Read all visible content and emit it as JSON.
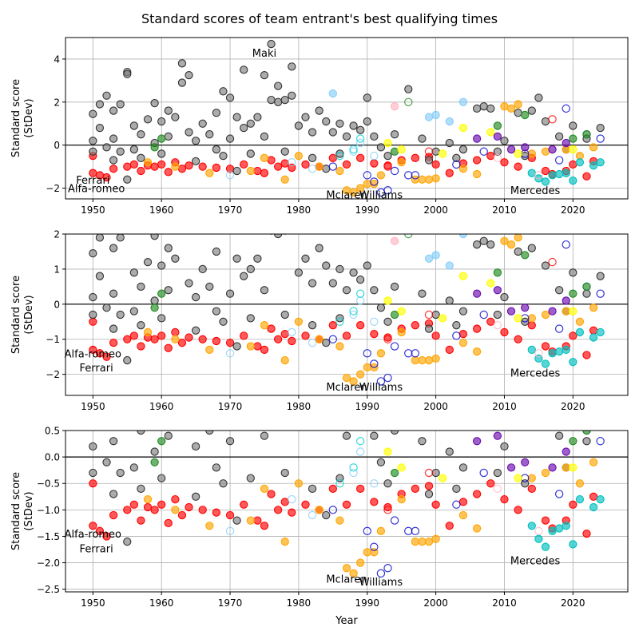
{
  "figure_title": "Standard scores of team entrant's best qualifying times",
  "colors": {
    "grey": "#808080",
    "red": "#ff0000",
    "orange": "#ffa500",
    "blue": "#0000cd",
    "lightblue": "#87cefa",
    "cyan": "#00ced1",
    "green": "#228b22",
    "yellow": "#ffff00",
    "purple": "#6a0dad",
    "pink": "#ffb6c1",
    "teal": "#00bfbf"
  },
  "chart_data": [
    {
      "type": "scatter",
      "ylabel": "Standard score\n(StDev)",
      "xlabel": "",
      "xlim": [
        1946,
        2028
      ],
      "ylim": [
        -2.5,
        5
      ],
      "xticks": [
        1950,
        1960,
        1970,
        1980,
        1990,
        2000,
        2010,
        2020
      ],
      "yticks": [
        -2,
        0,
        2,
        4
      ],
      "grid": true,
      "annotations": [
        {
          "text": "Maki",
          "x": 1975,
          "y": 4.3
        },
        {
          "text": "Ferrari",
          "x": 1950,
          "y": -1.6
        },
        {
          "text": "Alfa-romeo",
          "x": 1950.5,
          "y": -2.0
        },
        {
          "text": "Mclaren",
          "x": 1987,
          "y": -2.3
        },
        {
          "text": "Williams",
          "x": 1992,
          "y": -2.3
        },
        {
          "text": "Mercedes",
          "x": 2014.5,
          "y": -2.1
        }
      ]
    },
    {
      "type": "scatter",
      "ylabel": "Standard score\n(StDev)",
      "xlabel": "",
      "xlim": [
        1946,
        2028
      ],
      "ylim": [
        -2.6,
        2
      ],
      "xticks": [
        1950,
        1960,
        1970,
        1980,
        1990,
        2000,
        2010,
        2020
      ],
      "yticks": [
        -2,
        -1,
        0,
        1,
        2
      ],
      "grid": true,
      "annotations": [
        {
          "text": "Alfa-romeo",
          "x": 1950,
          "y": -1.4
        },
        {
          "text": "Ferrari",
          "x": 1950.5,
          "y": -1.8
        },
        {
          "text": "Mclaren",
          "x": 1987,
          "y": -2.35
        },
        {
          "text": "Williams",
          "x": 1992,
          "y": -2.35
        },
        {
          "text": "Mercedes",
          "x": 2014.5,
          "y": -1.95
        }
      ]
    },
    {
      "type": "scatter",
      "ylabel": "Standard score\n(StDev)",
      "xlabel": "Year",
      "xlim": [
        1946,
        2028
      ],
      "ylim": [
        -2.55,
        0.5
      ],
      "xticks": [
        1950,
        1960,
        1970,
        1980,
        1990,
        2000,
        2010,
        2020
      ],
      "yticks": [
        -2.5,
        -2.0,
        -1.5,
        -1.0,
        -0.5,
        0.0,
        0.5
      ],
      "grid": true,
      "annotations": [
        {
          "text": "Alfa-romeo",
          "x": 1950,
          "y": -1.45
        },
        {
          "text": "Ferrari",
          "x": 1950.5,
          "y": -1.73
        },
        {
          "text": "Mclaren",
          "x": 1987,
          "y": -2.3
        },
        {
          "text": "Williams",
          "x": 1992,
          "y": -2.35
        },
        {
          "text": "Mercedes",
          "x": 2014.5,
          "y": -1.95
        }
      ]
    }
  ],
  "points": [
    {
      "x": 1950,
      "y": -0.5,
      "c": "red"
    },
    {
      "x": 1950,
      "y": -1.3,
      "c": "red"
    },
    {
      "x": 1951,
      "y": -1.4,
      "c": "red"
    },
    {
      "x": 1952,
      "y": -1.5,
      "c": "red"
    },
    {
      "x": 1953,
      "y": -1.1,
      "c": "red"
    },
    {
      "x": 1955,
      "y": -1.0,
      "c": "red"
    },
    {
      "x": 1956,
      "y": -0.9,
      "c": "red"
    },
    {
      "x": 1957,
      "y": -1.2,
      "c": "red"
    },
    {
      "x": 1958,
      "y": -0.95,
      "c": "red"
    },
    {
      "x": 1959,
      "y": -1.0,
      "c": "red"
    },
    {
      "x": 1960,
      "y": -0.9,
      "c": "red"
    },
    {
      "x": 1961,
      "y": -1.25,
      "c": "red"
    },
    {
      "x": 1962,
      "y": -0.8,
      "c": "red"
    },
    {
      "x": 1963,
      "y": -1.1,
      "c": "red"
    },
    {
      "x": 1964,
      "y": -0.95,
      "c": "red"
    },
    {
      "x": 1966,
      "y": -1.0,
      "c": "red"
    },
    {
      "x": 1968,
      "y": -1.05,
      "c": "red"
    },
    {
      "x": 1970,
      "y": -1.1,
      "c": "red"
    },
    {
      "x": 1972,
      "y": -0.9,
      "c": "red"
    },
    {
      "x": 1974,
      "y": -1.2,
      "c": "red"
    },
    {
      "x": 1975,
      "y": -1.3,
      "c": "red"
    },
    {
      "x": 1976,
      "y": -0.7,
      "c": "red"
    },
    {
      "x": 1977,
      "y": -1.0,
      "c": "red"
    },
    {
      "x": 1978,
      "y": -0.85,
      "c": "red"
    },
    {
      "x": 1979,
      "y": -1.05,
      "c": "red"
    },
    {
      "x": 1981,
      "y": -0.9,
      "c": "red"
    },
    {
      "x": 1983,
      "y": -1.0,
      "c": "red"
    },
    {
      "x": 1985,
      "y": -0.6,
      "c": "red"
    },
    {
      "x": 1987,
      "y": -0.9,
      "c": "red"
    },
    {
      "x": 1989,
      "y": -0.6,
      "c": "red"
    },
    {
      "x": 1991,
      "y": -0.85,
      "c": "red"
    },
    {
      "x": 1993,
      "y": -0.95,
      "c": "red"
    },
    {
      "x": 1995,
      "y": -0.7,
      "c": "red"
    },
    {
      "x": 1997,
      "y": -0.6,
      "c": "red"
    },
    {
      "x": 1999,
      "y": -0.55,
      "c": "red"
    },
    {
      "x": 2000,
      "y": -0.9,
      "c": "red"
    },
    {
      "x": 2002,
      "y": -1.3,
      "c": "red"
    },
    {
      "x": 2004,
      "y": -0.85,
      "c": "red"
    },
    {
      "x": 2006,
      "y": -0.7,
      "c": "red"
    },
    {
      "x": 2008,
      "y": -0.5,
      "c": "red"
    },
    {
      "x": 2010,
      "y": -0.8,
      "c": "red"
    },
    {
      "x": 2012,
      "y": -1.0,
      "c": "red"
    },
    {
      "x": 2014,
      "y": -0.6,
      "c": "red"
    },
    {
      "x": 2016,
      "y": -1.2,
      "c": "red"
    },
    {
      "x": 2017,
      "y": -1.35,
      "c": "red"
    },
    {
      "x": 2019,
      "y": -1.2,
      "c": "red"
    },
    {
      "x": 2020,
      "y": -0.9,
      "c": "red"
    },
    {
      "x": 2022,
      "y": -1.45,
      "c": "red"
    },
    {
      "x": 2023,
      "y": -0.75,
      "c": "red"
    },
    {
      "x": 1950,
      "y": 0.2,
      "c": "grey"
    },
    {
      "x": 1950,
      "y": 1.45,
      "c": "grey"
    },
    {
      "x": 1951,
      "y": 0.8,
      "c": "grey"
    },
    {
      "x": 1951,
      "y": 1.9,
      "c": "grey"
    },
    {
      "x": 1952,
      "y": 2.3,
      "c": "grey"
    },
    {
      "x": 1952,
      "y": -0.1,
      "c": "grey"
    },
    {
      "x": 1953,
      "y": 1.6,
      "c": "grey"
    },
    {
      "x": 1953,
      "y": 0.3,
      "c": "grey"
    },
    {
      "x": 1954,
      "y": 1.9,
      "c": "grey"
    },
    {
      "x": 1954,
      "y": -0.3,
      "c": "grey"
    },
    {
      "x": 1955,
      "y": 3.4,
      "c": "grey"
    },
    {
      "x": 1955,
      "y": 3.3,
      "c": "grey"
    },
    {
      "x": 1956,
      "y": 0.9,
      "c": "grey"
    },
    {
      "x": 1956,
      "y": -0.2,
      "c": "grey"
    },
    {
      "x": 1957,
      "y": 0.5,
      "c": "grey"
    },
    {
      "x": 1958,
      "y": 1.2,
      "c": "grey"
    },
    {
      "x": 1959,
      "y": 1.95,
      "c": "grey"
    },
    {
      "x": 1959,
      "y": 0.1,
      "c": "grey"
    },
    {
      "x": 1960,
      "y": 1.1,
      "c": "grey"
    },
    {
      "x": 1961,
      "y": 1.6,
      "c": "grey"
    },
    {
      "x": 1961,
      "y": 0.4,
      "c": "grey"
    },
    {
      "x": 1962,
      "y": 1.3,
      "c": "grey"
    },
    {
      "x": 1963,
      "y": 3.8,
      "c": "grey"
    },
    {
      "x": 1963,
      "y": 2.9,
      "c": "grey"
    },
    {
      "x": 1964,
      "y": 3.25,
      "c": "grey"
    },
    {
      "x": 1964,
      "y": 0.6,
      "c": "grey"
    },
    {
      "x": 1965,
      "y": 0.2,
      "c": "grey"
    },
    {
      "x": 1966,
      "y": 1.0,
      "c": "grey"
    },
    {
      "x": 1967,
      "y": 0.5,
      "c": "grey"
    },
    {
      "x": 1968,
      "y": 1.5,
      "c": "grey"
    },
    {
      "x": 1968,
      "y": -0.2,
      "c": "grey"
    },
    {
      "x": 1969,
      "y": 2.5,
      "c": "grey"
    },
    {
      "x": 1970,
      "y": 2.2,
      "c": "grey"
    },
    {
      "x": 1970,
      "y": 0.3,
      "c": "grey"
    },
    {
      "x": 1971,
      "y": 1.3,
      "c": "grey"
    },
    {
      "x": 1972,
      "y": 3.5,
      "c": "grey"
    },
    {
      "x": 1972,
      "y": 0.8,
      "c": "grey"
    },
    {
      "x": 1973,
      "y": 1.0,
      "c": "grey"
    },
    {
      "x": 1974,
      "y": 1.3,
      "c": "grey"
    },
    {
      "x": 1975,
      "y": 3.25,
      "c": "grey"
    },
    {
      "x": 1975,
      "y": 0.4,
      "c": "grey"
    },
    {
      "x": 1976,
      "y": 4.7,
      "c": "grey"
    },
    {
      "x": 1976,
      "y": 2.1,
      "c": "grey"
    },
    {
      "x": 1977,
      "y": 2.75,
      "c": "grey"
    },
    {
      "x": 1977,
      "y": 2.0,
      "c": "grey"
    },
    {
      "x": 1978,
      "y": 2.1,
      "c": "grey"
    },
    {
      "x": 1979,
      "y": 3.65,
      "c": "grey"
    },
    {
      "x": 1979,
      "y": 2.3,
      "c": "grey"
    },
    {
      "x": 1980,
      "y": 0.9,
      "c": "grey"
    },
    {
      "x": 1981,
      "y": 1.3,
      "c": "grey"
    },
    {
      "x": 1982,
      "y": 0.6,
      "c": "grey"
    },
    {
      "x": 1983,
      "y": 1.6,
      "c": "grey"
    },
    {
      "x": 1984,
      "y": 1.1,
      "c": "grey"
    },
    {
      "x": 1985,
      "y": 0.6,
      "c": "grey"
    },
    {
      "x": 1986,
      "y": 1.0,
      "c": "grey"
    },
    {
      "x": 1987,
      "y": 0.4,
      "c": "grey"
    },
    {
      "x": 1988,
      "y": 0.9,
      "c": "grey"
    },
    {
      "x": 1989,
      "y": 0.7,
      "c": "grey"
    },
    {
      "x": 1990,
      "y": 2.2,
      "c": "grey"
    },
    {
      "x": 1990,
      "y": 1.1,
      "c": "grey"
    },
    {
      "x": 1991,
      "y": 0.4,
      "c": "grey"
    },
    {
      "x": 1992,
      "y": -0.1,
      "c": "grey"
    },
    {
      "x": 1994,
      "y": 0.5,
      "c": "grey"
    },
    {
      "x": 1996,
      "y": 2.6,
      "c": "grey"
    },
    {
      "x": 1998,
      "y": 0.3,
      "c": "grey"
    },
    {
      "x": 2000,
      "y": -0.3,
      "c": "grey"
    },
    {
      "x": 2002,
      "y": 0.1,
      "c": "grey"
    },
    {
      "x": 2004,
      "y": -0.2,
      "c": "grey"
    },
    {
      "x": 2006,
      "y": 1.7,
      "c": "grey"
    },
    {
      "x": 2007,
      "y": 1.8,
      "c": "grey"
    },
    {
      "x": 2008,
      "y": 1.7,
      "c": "grey"
    },
    {
      "x": 2010,
      "y": 0.2,
      "c": "grey"
    },
    {
      "x": 2012,
      "y": 1.5,
      "c": "grey"
    },
    {
      "x": 2014,
      "y": 1.6,
      "c": "grey"
    },
    {
      "x": 2015,
      "y": 2.2,
      "c": "grey"
    },
    {
      "x": 2016,
      "y": 1.1,
      "c": "grey"
    },
    {
      "x": 2018,
      "y": 0.4,
      "c": "grey"
    },
    {
      "x": 2020,
      "y": 0.9,
      "c": "grey"
    },
    {
      "x": 2022,
      "y": 0.3,
      "c": "grey"
    },
    {
      "x": 2024,
      "y": 0.8,
      "c": "grey"
    },
    {
      "x": 1950,
      "y": -0.3,
      "c": "grey"
    },
    {
      "x": 1953,
      "y": -0.7,
      "c": "grey"
    },
    {
      "x": 1957,
      "y": -0.6,
      "c": "grey"
    },
    {
      "x": 1960,
      "y": -0.4,
      "c": "grey"
    },
    {
      "x": 1965,
      "y": -0.75,
      "c": "grey"
    },
    {
      "x": 1969,
      "y": -0.5,
      "c": "grey"
    },
    {
      "x": 1973,
      "y": -0.4,
      "c": "grey"
    },
    {
      "x": 1978,
      "y": -0.3,
      "c": "grey"
    },
    {
      "x": 1982,
      "y": -0.6,
      "c": "grey"
    },
    {
      "x": 1986,
      "y": -0.4,
      "c": "grey"
    },
    {
      "x": 1993,
      "y": -0.5,
      "c": "grey"
    },
    {
      "x": 1999,
      "y": -0.7,
      "c": "grey"
    },
    {
      "x": 2003,
      "y": -0.6,
      "c": "grey"
    },
    {
      "x": 2009,
      "y": -0.3,
      "c": "grey"
    },
    {
      "x": 2013,
      "y": -0.5,
      "c": "grey"
    },
    {
      "x": 2019,
      "y": -0.2,
      "c": "grey"
    },
    {
      "x": 1955,
      "y": -1.6,
      "c": "grey"
    },
    {
      "x": 1971,
      "y": -1.2,
      "c": "grey"
    },
    {
      "x": 1984,
      "y": -1.1,
      "c": "grey"
    },
    {
      "x": 1958,
      "y": -0.8,
      "c": "orange"
    },
    {
      "x": 1962,
      "y": -1.0,
      "c": "orange"
    },
    {
      "x": 1967,
      "y": -1.3,
      "c": "orange"
    },
    {
      "x": 1973,
      "y": -1.2,
      "c": "orange"
    },
    {
      "x": 1978,
      "y": -1.6,
      "c": "orange"
    },
    {
      "x": 1980,
      "y": -0.5,
      "c": "orange"
    },
    {
      "x": 1983,
      "y": -1.0,
      "c": "orange"
    },
    {
      "x": 1986,
      "y": -1.2,
      "c": "orange"
    },
    {
      "x": 1987,
      "y": -2.1,
      "c": "orange"
    },
    {
      "x": 1988,
      "y": -2.2,
      "c": "orange"
    },
    {
      "x": 1989,
      "y": -2.0,
      "c": "orange"
    },
    {
      "x": 1990,
      "y": -1.8,
      "c": "orange"
    },
    {
      "x": 1991,
      "y": -1.8,
      "c": "orange"
    },
    {
      "x": 1992,
      "y": -1.4,
      "c": "orange"
    },
    {
      "x": 1997,
      "y": -1.6,
      "c": "orange"
    },
    {
      "x": 1998,
      "y": -1.6,
      "c": "orange"
    },
    {
      "x": 1999,
      "y": -1.6,
      "c": "orange"
    },
    {
      "x": 2000,
      "y": -1.55,
      "c": "orange"
    },
    {
      "x": 2004,
      "y": -1.1,
      "c": "orange"
    },
    {
      "x": 2006,
      "y": -1.35,
      "c": "orange"
    },
    {
      "x": 2010,
      "y": 1.8,
      "c": "orange"
    },
    {
      "x": 2011,
      "y": 1.7,
      "c": "orange"
    },
    {
      "x": 2012,
      "y": 1.9,
      "c": "orange"
    },
    {
      "x": 2014,
      "y": -0.4,
      "c": "orange"
    },
    {
      "x": 2016,
      "y": -0.3,
      "c": "orange"
    },
    {
      "x": 2019,
      "y": -0.2,
      "c": "orange"
    },
    {
      "x": 2021,
      "y": -0.5,
      "c": "orange"
    },
    {
      "x": 2023,
      "y": -0.1,
      "c": "orange"
    },
    {
      "x": 1975,
      "y": -0.6,
      "c": "orange"
    },
    {
      "x": 1995,
      "y": -0.8,
      "c": "orange"
    },
    {
      "x": 1985,
      "y": -1.0,
      "c": "blue",
      "h": true
    },
    {
      "x": 1990,
      "y": -1.4,
      "c": "blue",
      "h": true
    },
    {
      "x": 1991,
      "y": -1.7,
      "c": "blue",
      "h": true
    },
    {
      "x": 1992,
      "y": -2.2,
      "c": "blue",
      "h": true
    },
    {
      "x": 1993,
      "y": -2.1,
      "c": "blue",
      "h": true
    },
    {
      "x": 1994,
      "y": -1.2,
      "c": "blue",
      "h": true
    },
    {
      "x": 1996,
      "y": -1.4,
      "c": "blue",
      "h": true
    },
    {
      "x": 1997,
      "y": -1.4,
      "c": "blue",
      "h": true
    },
    {
      "x": 2003,
      "y": -0.9,
      "c": "blue",
      "h": true
    },
    {
      "x": 2007,
      "y": -0.3,
      "c": "blue",
      "h": true
    },
    {
      "x": 2013,
      "y": -0.4,
      "c": "blue",
      "h": true
    },
    {
      "x": 2018,
      "y": -0.7,
      "c": "blue",
      "h": true
    },
    {
      "x": 2019,
      "y": 1.7,
      "c": "blue",
      "h": true
    },
    {
      "x": 2022,
      "y": 0.5,
      "c": "blue",
      "h": true
    },
    {
      "x": 2024,
      "y": 0.3,
      "c": "blue",
      "h": true
    },
    {
      "x": 1970,
      "y": -1.4,
      "c": "lightblue",
      "h": true
    },
    {
      "x": 1979,
      "y": -0.8,
      "c": "lightblue",
      "h": true
    },
    {
      "x": 1982,
      "y": -1.1,
      "c": "lightblue",
      "h": true
    },
    {
      "x": 1988,
      "y": -0.3,
      "c": "lightblue",
      "h": true
    },
    {
      "x": 1989,
      "y": 0.1,
      "c": "lightblue",
      "h": true
    },
    {
      "x": 1991,
      "y": -0.5,
      "c": "lightblue",
      "h": true
    },
    {
      "x": 1985,
      "y": 2.4,
      "c": "lightblue"
    },
    {
      "x": 1999,
      "y": 1.3,
      "c": "lightblue"
    },
    {
      "x": 2000,
      "y": 1.4,
      "c": "lightblue"
    },
    {
      "x": 2002,
      "y": 1.1,
      "c": "lightblue"
    },
    {
      "x": 2004,
      "y": 2.0,
      "c": "lightblue"
    },
    {
      "x": 1988,
      "y": -0.2,
      "c": "cyan",
      "h": true
    },
    {
      "x": 1989,
      "y": 0.3,
      "c": "cyan",
      "h": true
    },
    {
      "x": 1986,
      "y": -0.5,
      "c": "cyan",
      "h": true
    },
    {
      "x": 2014,
      "y": -1.3,
      "c": "teal"
    },
    {
      "x": 2015,
      "y": -1.55,
      "c": "teal"
    },
    {
      "x": 2016,
      "y": -1.7,
      "c": "teal"
    },
    {
      "x": 2017,
      "y": -1.4,
      "c": "teal"
    },
    {
      "x": 2018,
      "y": -1.35,
      "c": "teal"
    },
    {
      "x": 2019,
      "y": -1.3,
      "c": "teal"
    },
    {
      "x": 2020,
      "y": -1.65,
      "c": "teal"
    },
    {
      "x": 2021,
      "y": -0.8,
      "c": "teal"
    },
    {
      "x": 2023,
      "y": -0.95,
      "c": "teal"
    },
    {
      "x": 2024,
      "y": -0.8,
      "c": "teal"
    },
    {
      "x": 1959,
      "y": -0.1,
      "c": "green"
    },
    {
      "x": 1960,
      "y": 0.3,
      "c": "green"
    },
    {
      "x": 1994,
      "y": -0.3,
      "c": "green"
    },
    {
      "x": 1996,
      "y": 2.0,
      "c": "green",
      "h": true
    },
    {
      "x": 2009,
      "y": 0.9,
      "c": "green"
    },
    {
      "x": 2013,
      "y": 1.4,
      "c": "green"
    },
    {
      "x": 2020,
      "y": 0.3,
      "c": "green"
    },
    {
      "x": 2022,
      "y": 0.5,
      "c": "green"
    },
    {
      "x": 1993,
      "y": 0.1,
      "c": "yellow"
    },
    {
      "x": 1995,
      "y": -0.2,
      "c": "yellow"
    },
    {
      "x": 2001,
      "y": -0.4,
      "c": "yellow"
    },
    {
      "x": 2004,
      "y": 0.8,
      "c": "yellow"
    },
    {
      "x": 2008,
      "y": 0.6,
      "c": "yellow"
    },
    {
      "x": 2012,
      "y": -0.4,
      "c": "yellow"
    },
    {
      "x": 2020,
      "y": -0.2,
      "c": "yellow"
    },
    {
      "x": 2006,
      "y": 0.3,
      "c": "purple"
    },
    {
      "x": 2009,
      "y": 0.4,
      "c": "purple"
    },
    {
      "x": 2011,
      "y": -0.2,
      "c": "purple"
    },
    {
      "x": 2013,
      "y": -0.1,
      "c": "purple"
    },
    {
      "x": 2017,
      "y": -0.2,
      "c": "purple"
    },
    {
      "x": 2019,
      "y": 0.1,
      "c": "purple"
    },
    {
      "x": 1994,
      "y": 1.8,
      "c": "pink"
    },
    {
      "x": 2009,
      "y": -0.6,
      "c": "pink",
      "h": true
    },
    {
      "x": 2015,
      "y": -1.4,
      "c": "pink",
      "h": true
    },
    {
      "x": 1993,
      "y": -1.0,
      "c": "red",
      "h": true
    },
    {
      "x": 1999,
      "y": -0.3,
      "c": "red",
      "h": true
    },
    {
      "x": 2017,
      "y": 1.2,
      "c": "red",
      "h": true
    }
  ]
}
